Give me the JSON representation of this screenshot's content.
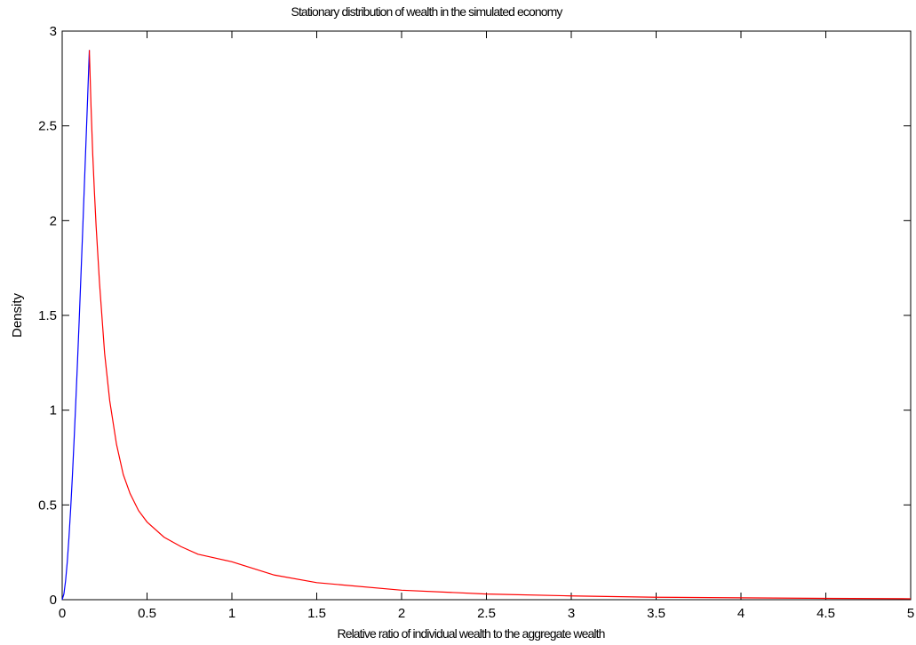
{
  "chart_data": {
    "type": "line",
    "title": "Stationary distribution of wealth in the simulated economy",
    "x_label": "Relative ratio of individual wealth to the aggregate wealth",
    "y_label": "Density",
    "series": [
      {
        "color": "#0000ff",
        "x": [
          0,
          0.01,
          0.02,
          0.03,
          0.04,
          0.05,
          0.06,
          0.07,
          0.08,
          0.09,
          0.1,
          0.11,
          0.12,
          0.13,
          0.14,
          0.15,
          0.16
        ],
        "values": [
          0,
          0.03,
          0.1,
          0.2,
          0.33,
          0.48,
          0.65,
          0.84,
          1.04,
          1.25,
          1.47,
          1.7,
          1.93,
          2.17,
          2.41,
          2.65,
          2.9
        ]
      },
      {
        "color": "#ff0000",
        "x": [
          0.16,
          0.17,
          0.18,
          0.19,
          0.2,
          0.22,
          0.25,
          0.28,
          0.32,
          0.36,
          0.4,
          0.45,
          0.5,
          0.6,
          0.7,
          0.8,
          0.9,
          1,
          1.25,
          1.5,
          2,
          2.5,
          3,
          3.5,
          4,
          4.5,
          5
        ],
        "values": [
          2.9,
          2.6,
          2.35,
          2.15,
          1.97,
          1.67,
          1.3,
          1.05,
          0.82,
          0.66,
          0.56,
          0.47,
          0.41,
          0.33,
          0.28,
          0.24,
          0.22,
          0.2,
          0.13,
          0.09,
          0.05,
          0.03,
          0.02,
          0.013,
          0.01,
          0.007,
          0.005
        ]
      }
    ],
    "xlim": [
      0,
      5
    ],
    "ylim": [
      0,
      3
    ],
    "xticks": [
      0,
      0.5,
      1,
      1.5,
      2,
      2.5,
      3,
      3.5,
      4,
      4.5,
      5
    ],
    "yticks": [
      0,
      0.5,
      1,
      1.5,
      2,
      2.5,
      3
    ]
  }
}
